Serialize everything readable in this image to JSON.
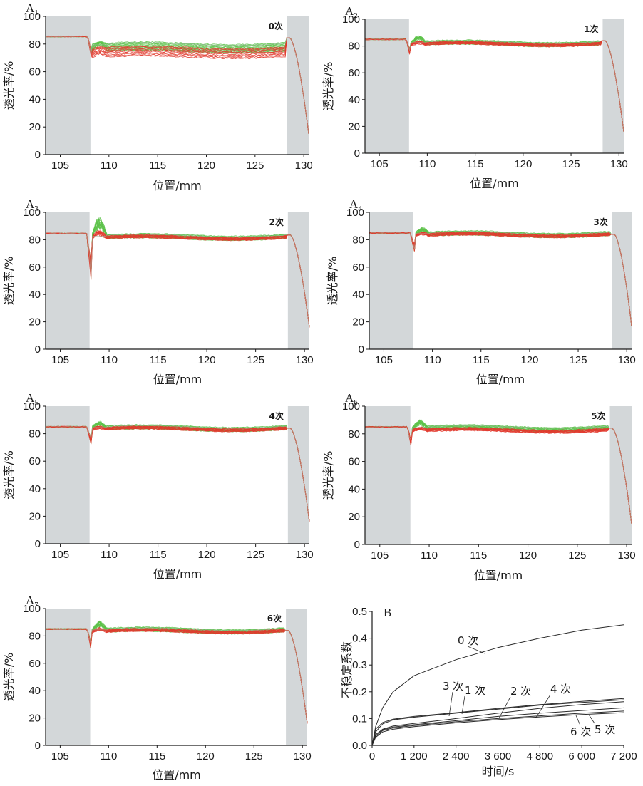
{
  "colors": {
    "shade": "#d3d7d9",
    "green": "#5cc24a",
    "red": "#e23a2e",
    "axis": "#1a1a1a",
    "gray_tail": "#9fb9a4"
  },
  "chart_data": [
    {
      "type": "line",
      "panel": "A1",
      "panel_letter": "A",
      "panel_sub": "1",
      "count_label": "0次",
      "xlabel": "位置/mm",
      "ylabel": "透光率/%",
      "xlim": [
        103.5,
        130.5
      ],
      "ylim": [
        0,
        100
      ],
      "x_ticks": [
        105,
        110,
        115,
        120,
        125,
        130
      ],
      "y_ticks": [
        0,
        20,
        40,
        60,
        80,
        100
      ],
      "shaded_regions": [
        [
          103.5,
          108.1
        ],
        [
          128.3,
          130.5
        ]
      ],
      "plateau": 85.5,
      "dip_min": 66,
      "red_band": [
        70,
        77
      ],
      "green_band": [
        74,
        80
      ],
      "green_peak": 82,
      "tail_end": 15
    },
    {
      "type": "line",
      "panel": "A2",
      "panel_letter": "A",
      "panel_sub": "2",
      "count_label": "1次",
      "xlabel": "位置/mm",
      "ylabel": "透光率/%",
      "xlim": [
        103.5,
        130.5
      ],
      "ylim": [
        0,
        100
      ],
      "x_ticks": [
        105,
        110,
        115,
        120,
        125,
        130
      ],
      "y_ticks": [
        0,
        20,
        40,
        60,
        80,
        100
      ],
      "shaded_regions": [
        [
          103.5,
          108.1
        ],
        [
          128.3,
          130.5
        ]
      ],
      "plateau": 85,
      "dip_min": 69,
      "red_band": [
        80,
        82
      ],
      "green_band": [
        80,
        83
      ],
      "green_peak": 88,
      "tail_end": 16
    },
    {
      "type": "line",
      "panel": "A3",
      "panel_letter": "A",
      "panel_sub": "3",
      "count_label": "2次",
      "xlabel": "位置/mm",
      "ylabel": "透光率/%",
      "xlim": [
        103.5,
        130.5
      ],
      "ylim": [
        0,
        100
      ],
      "x_ticks": [
        105,
        110,
        115,
        120,
        125,
        130
      ],
      "y_ticks": [
        0,
        20,
        40,
        60,
        80,
        100
      ],
      "shaded_regions": [
        [
          103.5,
          108.0
        ],
        [
          128.3,
          130.5
        ]
      ],
      "plateau": 84.5,
      "dip_min": 47,
      "red_band": [
        80,
        82
      ],
      "green_band": [
        80,
        83
      ],
      "green_peak": 97,
      "tail_end": 16
    },
    {
      "type": "line",
      "panel": "A4",
      "panel_letter": "A",
      "panel_sub": "4",
      "count_label": "3次",
      "xlabel": "位置/mm",
      "ylabel": "透光率/%",
      "xlim": [
        103.5,
        130.5
      ],
      "ylim": [
        0,
        100
      ],
      "x_ticks": [
        105,
        110,
        115,
        120,
        125,
        130
      ],
      "y_ticks": [
        0,
        20,
        40,
        60,
        80,
        100
      ],
      "shaded_regions": [
        [
          103.5,
          108.0
        ],
        [
          128.5,
          130.5
        ]
      ],
      "plateau": 85,
      "dip_min": 70,
      "red_band": [
        82,
        84
      ],
      "green_band": [
        82,
        85
      ],
      "green_peak": 89,
      "tail_end": 17
    },
    {
      "type": "line",
      "panel": "A5",
      "panel_letter": "A",
      "panel_sub": "5",
      "count_label": "4次",
      "xlabel": "位置/mm",
      "ylabel": "透光率/%",
      "xlim": [
        103.5,
        130.5
      ],
      "ylim": [
        0,
        100
      ],
      "x_ticks": [
        105,
        110,
        115,
        120,
        125,
        130
      ],
      "y_ticks": [
        0,
        20,
        40,
        60,
        80,
        100
      ],
      "shaded_regions": [
        [
          103.5,
          108.0
        ],
        [
          128.3,
          130.5
        ]
      ],
      "plateau": 85,
      "dip_min": 71,
      "red_band": [
        82,
        84
      ],
      "green_band": [
        82,
        85
      ],
      "green_peak": 89,
      "tail_end": 16
    },
    {
      "type": "line",
      "panel": "A6",
      "panel_letter": "A",
      "panel_sub": "6",
      "count_label": "5次",
      "xlabel": "位置/mm",
      "ylabel": "透光率/%",
      "xlim": [
        103.5,
        130.5
      ],
      "ylim": [
        0,
        100
      ],
      "x_ticks": [
        105,
        110,
        115,
        120,
        125,
        130
      ],
      "y_ticks": [
        0,
        20,
        40,
        60,
        80,
        100
      ],
      "shaded_regions": [
        [
          103.5,
          108.1
        ],
        [
          128.3,
          130.5
        ]
      ],
      "plateau": 85,
      "dip_min": 66,
      "red_band": [
        81,
        83
      ],
      "green_band": [
        82,
        85
      ],
      "green_peak": 90,
      "tail_end": 15
    },
    {
      "type": "line",
      "panel": "A7",
      "panel_letter": "A",
      "panel_sub": "7",
      "count_label": "6次",
      "xlabel": "位置/mm",
      "ylabel": "透光率/%",
      "xlim": [
        103.5,
        130.5
      ],
      "ylim": [
        0,
        100
      ],
      "x_ticks": [
        105,
        110,
        115,
        120,
        125,
        130
      ],
      "y_ticks": [
        0,
        20,
        40,
        60,
        80,
        100
      ],
      "shaded_regions": [
        [
          103.5,
          108.1
        ],
        [
          128.3,
          130.5
        ]
      ],
      "plateau": 85,
      "dip_min": 65,
      "red_band": [
        82,
        84
      ],
      "green_band": [
        82,
        85
      ],
      "green_peak": 91,
      "tail_end": 16
    },
    {
      "type": "line",
      "panel": "B",
      "panel_letter": "B",
      "xlabel": "时间/s",
      "ylabel": "不稳定系数",
      "xlim": [
        0,
        7200
      ],
      "ylim": [
        0,
        0.5
      ],
      "x_ticks": [
        0,
        1200,
        2400,
        3600,
        4800,
        6000,
        7200
      ],
      "x_tick_labels": [
        "0",
        "1 200",
        "2 400",
        "3 600",
        "4 800",
        "6 000",
        "7 200"
      ],
      "y_ticks": [
        0,
        0.1,
        0.2,
        0.3,
        0.4,
        0.5
      ],
      "y_tick_labels": [
        "0.0",
        "0.1",
        "0.2",
        "0.3",
        "0.4",
        "0.5"
      ],
      "x": [
        0,
        100,
        300,
        600,
        1200,
        2400,
        3600,
        4800,
        6000,
        7200
      ],
      "series": [
        {
          "name": "0 次",
          "values": [
            0,
            0.07,
            0.14,
            0.2,
            0.26,
            0.32,
            0.365,
            0.4,
            0.43,
            0.45
          ]
        },
        {
          "name": "1 次",
          "values": [
            0,
            0.05,
            0.08,
            0.095,
            0.105,
            0.12,
            0.135,
            0.15,
            0.16,
            0.17
          ]
        },
        {
          "name": "2 次",
          "values": [
            0,
            0.04,
            0.06,
            0.072,
            0.082,
            0.1,
            0.12,
            0.138,
            0.152,
            0.163
          ]
        },
        {
          "name": "3 次",
          "values": [
            0,
            0.06,
            0.085,
            0.098,
            0.108,
            0.122,
            0.138,
            0.152,
            0.164,
            0.175
          ]
        },
        {
          "name": "4 次",
          "values": [
            0,
            0.04,
            0.058,
            0.068,
            0.077,
            0.092,
            0.108,
            0.12,
            0.13,
            0.14
          ]
        },
        {
          "name": "5 次",
          "values": [
            0,
            0.035,
            0.055,
            0.065,
            0.074,
            0.088,
            0.1,
            0.11,
            0.12,
            0.128
          ]
        },
        {
          "name": "6 次",
          "values": [
            0,
            0.03,
            0.05,
            0.06,
            0.07,
            0.084,
            0.096,
            0.106,
            0.115,
            0.122
          ]
        }
      ],
      "label_anchors": {
        "0 次": [
          2200,
          0.36
        ],
        "3 次": [
          2200,
          0.125
        ],
        "1 次": [
          2600,
          0.125
        ],
        "2 次": [
          3600,
          0.12
        ],
        "4 次": [
          5400,
          0.14
        ],
        "5 次": [
          6300,
          0.115
        ],
        "6 次": [
          5500,
          0.107
        ]
      }
    }
  ]
}
